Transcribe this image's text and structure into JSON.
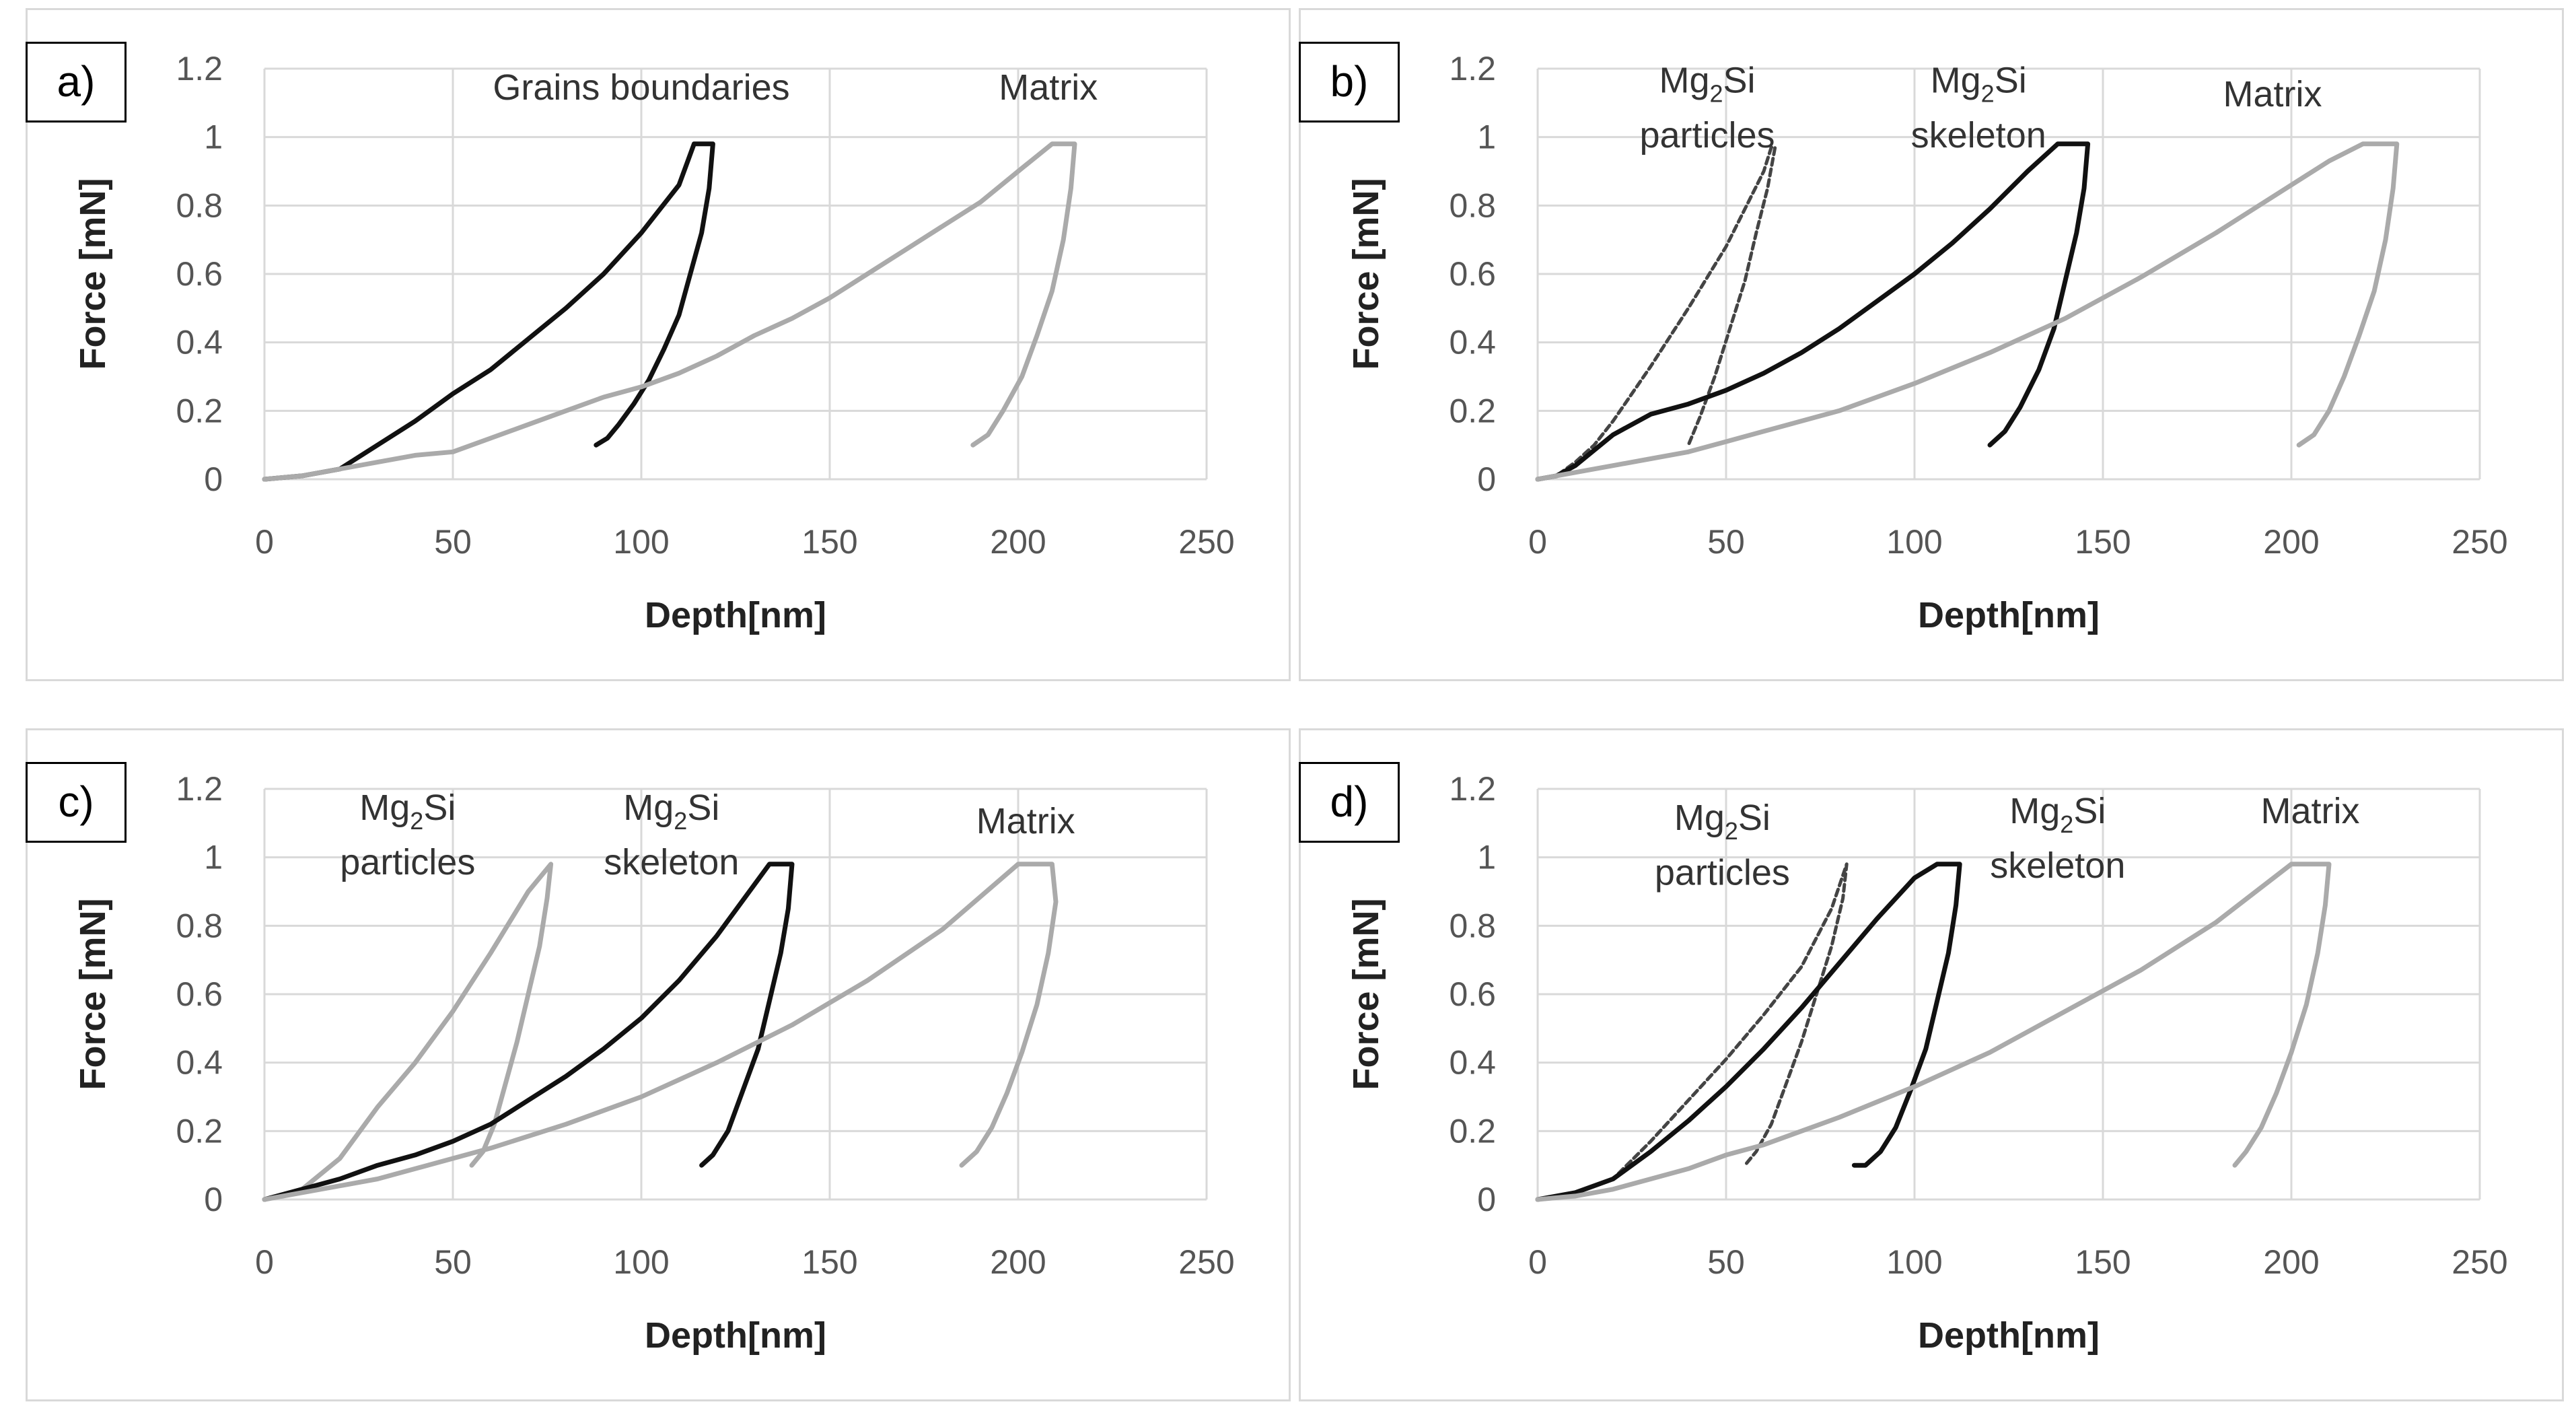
{
  "chart_data": [
    {
      "panel_label": "a)",
      "type": "line",
      "xlabel": "Depth[nm]",
      "ylabel": "Force [mN]",
      "xlim": [
        0,
        250
      ],
      "ylim": [
        0,
        1.2
      ],
      "x_ticks": [
        "0",
        "50",
        "100",
        "150",
        "200",
        "250"
      ],
      "y_ticks": [
        "0",
        "0.2",
        "0.4",
        "0.6",
        "0.8",
        "1",
        "1.2"
      ],
      "grid": true,
      "annotations": [
        {
          "text": "Grains boundaries",
          "at": [
            100,
            1.11
          ]
        },
        {
          "text": "Matrix",
          "at": [
            208,
            1.11
          ]
        }
      ],
      "series": [
        {
          "name": "Grains boundaries",
          "color": "#111111",
          "dashed": false,
          "x": [
            0,
            10,
            20,
            30,
            40,
            50,
            60,
            70,
            80,
            90,
            100,
            110,
            114,
            119,
            118,
            116,
            113,
            110,
            106,
            102,
            98,
            94,
            91,
            88
          ],
          "y": [
            0,
            0.01,
            0.03,
            0.1,
            0.17,
            0.25,
            0.32,
            0.41,
            0.5,
            0.6,
            0.72,
            0.86,
            0.98,
            0.98,
            0.85,
            0.72,
            0.6,
            0.48,
            0.38,
            0.29,
            0.22,
            0.16,
            0.12,
            0.1
          ]
        },
        {
          "name": "Matrix",
          "color": "#aaaaaa",
          "dashed": false,
          "x": [
            0,
            10,
            20,
            30,
            40,
            50,
            60,
            70,
            80,
            90,
            100,
            110,
            120,
            130,
            140,
            150,
            160,
            170,
            180,
            190,
            200,
            209,
            215,
            214,
            212,
            209,
            205,
            201,
            196,
            192,
            188
          ],
          "y": [
            0,
            0.01,
            0.03,
            0.05,
            0.07,
            0.08,
            0.12,
            0.16,
            0.2,
            0.24,
            0.27,
            0.31,
            0.36,
            0.42,
            0.47,
            0.53,
            0.6,
            0.67,
            0.74,
            0.81,
            0.9,
            0.98,
            0.98,
            0.85,
            0.7,
            0.55,
            0.42,
            0.3,
            0.2,
            0.13,
            0.1
          ]
        }
      ]
    },
    {
      "panel_label": "b)",
      "type": "line",
      "xlabel": "Depth[nm]",
      "ylabel": "Force [mN]",
      "xlim": [
        0,
        250
      ],
      "ylim": [
        0,
        1.2
      ],
      "x_ticks": [
        "0",
        "50",
        "100",
        "150",
        "200",
        "250"
      ],
      "y_ticks": [
        "0",
        "0.2",
        "0.4",
        "0.6",
        "0.8",
        "1",
        "1.2"
      ],
      "grid": true,
      "annotations": [
        {
          "text": "Mg2Si",
          "text_main": "Mg",
          "text_sub": "2",
          "text_tail": "Si",
          "at": [
            45,
            1.13
          ]
        },
        {
          "text": "particles",
          "at": [
            45,
            0.97
          ]
        },
        {
          "text": "Mg2Si",
          "text_main": "Mg",
          "text_sub": "2",
          "text_tail": "Si",
          "at": [
            117,
            1.13
          ]
        },
        {
          "text": "skeleton",
          "at": [
            117,
            0.97
          ]
        },
        {
          "text": "Matrix",
          "at": [
            195,
            1.09
          ]
        }
      ],
      "series": [
        {
          "name": "Mg2Si particles",
          "color": "#444444",
          "dashed": true,
          "x": [
            0,
            5,
            10,
            15,
            20,
            30,
            40,
            50,
            55,
            60,
            62,
            63,
            61,
            58,
            55,
            51,
            47,
            43,
            40
          ],
          "y": [
            0,
            0.01,
            0.05,
            0.1,
            0.17,
            0.33,
            0.5,
            0.68,
            0.79,
            0.9,
            0.97,
            0.97,
            0.85,
            0.72,
            0.58,
            0.44,
            0.3,
            0.18,
            0.1
          ]
        },
        {
          "name": "Mg2Si skeleton",
          "color": "#111111",
          "dashed": false,
          "x": [
            0,
            5,
            10,
            20,
            30,
            40,
            50,
            60,
            70,
            80,
            90,
            100,
            110,
            120,
            130,
            138,
            146,
            145,
            143,
            140,
            137,
            133,
            128,
            124,
            120
          ],
          "y": [
            0,
            0.01,
            0.04,
            0.13,
            0.19,
            0.22,
            0.26,
            0.31,
            0.37,
            0.44,
            0.52,
            0.6,
            0.69,
            0.79,
            0.9,
            0.98,
            0.98,
            0.85,
            0.72,
            0.58,
            0.44,
            0.32,
            0.21,
            0.14,
            0.1
          ]
        },
        {
          "name": "Matrix",
          "color": "#aaaaaa",
          "dashed": false,
          "x": [
            0,
            10,
            20,
            30,
            40,
            50,
            60,
            80,
            100,
            120,
            140,
            160,
            180,
            200,
            210,
            219,
            228,
            227,
            225,
            222,
            218,
            214,
            210,
            206,
            202
          ],
          "y": [
            0,
            0.02,
            0.04,
            0.06,
            0.08,
            0.11,
            0.14,
            0.2,
            0.28,
            0.37,
            0.47,
            0.59,
            0.72,
            0.86,
            0.93,
            0.98,
            0.98,
            0.85,
            0.7,
            0.55,
            0.42,
            0.3,
            0.2,
            0.13,
            0.1
          ]
        }
      ]
    },
    {
      "panel_label": "c)",
      "type": "line",
      "xlabel": "Depth[nm]",
      "ylabel": "Force [mN]",
      "xlim": [
        0,
        250
      ],
      "ylim": [
        0,
        1.2
      ],
      "x_ticks": [
        "0",
        "50",
        "100",
        "150",
        "200",
        "250"
      ],
      "y_ticks": [
        "0",
        "0.2",
        "0.4",
        "0.6",
        "0.8",
        "1",
        "1.2"
      ],
      "grid": true,
      "annotations": [
        {
          "text": "Mg2Si",
          "text_main": "Mg",
          "text_sub": "2",
          "text_tail": "Si",
          "at": [
            38,
            1.11
          ]
        },
        {
          "text": "particles",
          "at": [
            38,
            0.95
          ]
        },
        {
          "text": "Mg2Si",
          "text_main": "Mg",
          "text_sub": "2",
          "text_tail": "Si",
          "at": [
            108,
            1.11
          ]
        },
        {
          "text": "skeleton",
          "at": [
            108,
            0.95
          ]
        },
        {
          "text": "Matrix",
          "at": [
            202,
            1.07
          ]
        }
      ],
      "series": [
        {
          "name": "Mg2Si particles",
          "color": "#aaaaaa",
          "dashed": false,
          "x": [
            0,
            10,
            20,
            30,
            40,
            50,
            60,
            70,
            76,
            75,
            73,
            70,
            67,
            64,
            61,
            58,
            55
          ],
          "y": [
            0,
            0.03,
            0.12,
            0.27,
            0.4,
            0.55,
            0.72,
            0.9,
            0.98,
            0.88,
            0.74,
            0.6,
            0.46,
            0.34,
            0.22,
            0.14,
            0.1
          ]
        },
        {
          "name": "Mg2Si skeleton",
          "color": "#111111",
          "dashed": false,
          "x": [
            0,
            10,
            20,
            30,
            40,
            50,
            60,
            70,
            80,
            90,
            100,
            110,
            120,
            130,
            134,
            140,
            139,
            137,
            134,
            131,
            127,
            123,
            119,
            116
          ],
          "y": [
            0,
            0.03,
            0.06,
            0.1,
            0.13,
            0.17,
            0.22,
            0.29,
            0.36,
            0.44,
            0.53,
            0.64,
            0.77,
            0.92,
            0.98,
            0.98,
            0.85,
            0.72,
            0.58,
            0.44,
            0.32,
            0.2,
            0.13,
            0.1
          ]
        },
        {
          "name": "Matrix",
          "color": "#aaaaaa",
          "dashed": false,
          "x": [
            0,
            10,
            20,
            30,
            40,
            50,
            60,
            80,
            100,
            120,
            140,
            160,
            180,
            200,
            209,
            210,
            208,
            205,
            201,
            197,
            193,
            189,
            185
          ],
          "y": [
            0,
            0.02,
            0.04,
            0.06,
            0.09,
            0.12,
            0.15,
            0.22,
            0.3,
            0.4,
            0.51,
            0.64,
            0.79,
            0.98,
            0.98,
            0.87,
            0.72,
            0.57,
            0.43,
            0.31,
            0.21,
            0.14,
            0.1
          ]
        }
      ]
    },
    {
      "panel_label": "d)",
      "type": "line",
      "xlabel": "Depth[nm]",
      "ylabel": "Force [mN]",
      "xlim": [
        0,
        250
      ],
      "ylim": [
        0,
        1.2
      ],
      "x_ticks": [
        "0",
        "50",
        "100",
        "150",
        "200",
        "250"
      ],
      "y_ticks": [
        "0",
        "0.2",
        "0.4",
        "0.6",
        "0.8",
        "1",
        "1.2"
      ],
      "grid": true,
      "annotations": [
        {
          "text": "Mg2Si",
          "text_main": "Mg",
          "text_sub": "2",
          "text_tail": "Si",
          "at": [
            49,
            1.08
          ]
        },
        {
          "text": "particles",
          "at": [
            49,
            0.92
          ]
        },
        {
          "text": "Mg2Si",
          "text_main": "Mg",
          "text_sub": "2",
          "text_tail": "Si",
          "at": [
            138,
            1.1
          ]
        },
        {
          "text": "skeleton",
          "at": [
            138,
            0.94
          ]
        },
        {
          "text": "Matrix",
          "at": [
            205,
            1.1
          ]
        }
      ],
      "series": [
        {
          "name": "Mg2Si particles",
          "color": "#444444",
          "dashed": true,
          "x": [
            0,
            10,
            20,
            30,
            40,
            50,
            60,
            70,
            78,
            82,
            81,
            78,
            74,
            70,
            66,
            62,
            58,
            55
          ],
          "y": [
            0,
            0.02,
            0.06,
            0.17,
            0.29,
            0.41,
            0.54,
            0.68,
            0.85,
            0.98,
            0.88,
            0.74,
            0.6,
            0.46,
            0.34,
            0.22,
            0.14,
            0.1
          ]
        },
        {
          "name": "Mg2Si skeleton",
          "color": "#111111",
          "dashed": false,
          "x": [
            0,
            10,
            20,
            30,
            40,
            50,
            60,
            70,
            80,
            90,
            100,
            106,
            112,
            111,
            109,
            106,
            103,
            99,
            95,
            91,
            87,
            84
          ],
          "y": [
            0,
            0.02,
            0.06,
            0.14,
            0.23,
            0.33,
            0.44,
            0.56,
            0.69,
            0.82,
            0.94,
            0.98,
            0.98,
            0.86,
            0.72,
            0.58,
            0.44,
            0.32,
            0.21,
            0.14,
            0.1,
            0.1
          ]
        },
        {
          "name": "Matrix",
          "color": "#aaaaaa",
          "dashed": false,
          "x": [
            0,
            10,
            20,
            30,
            40,
            50,
            60,
            80,
            100,
            120,
            140,
            160,
            180,
            200,
            210,
            209,
            207,
            204,
            200,
            196,
            192,
            188,
            185
          ],
          "y": [
            0,
            0.01,
            0.03,
            0.06,
            0.09,
            0.13,
            0.16,
            0.24,
            0.33,
            0.43,
            0.55,
            0.67,
            0.81,
            0.98,
            0.98,
            0.86,
            0.72,
            0.57,
            0.43,
            0.31,
            0.21,
            0.14,
            0.1
          ]
        }
      ]
    }
  ]
}
